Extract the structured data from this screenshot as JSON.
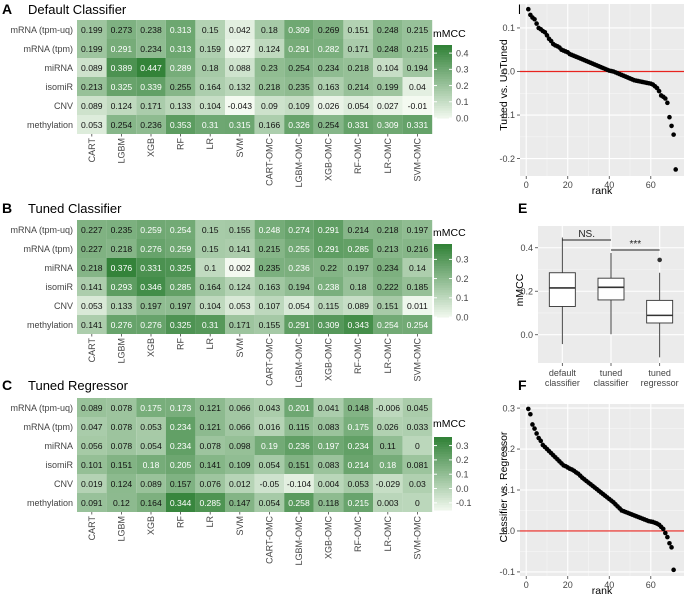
{
  "chart_data": {
    "heatmaps": [
      {
        "id": "A",
        "panel_label": "A",
        "type": "heatmap",
        "title": "Default Classifier",
        "legend_title": "mMCC",
        "legend_ticks": [
          0.4,
          0.3,
          0.2,
          0.1,
          0.0
        ],
        "legend_tick_labels": [
          "0.4",
          "0.3",
          "0.2",
          "0.1",
          "0.0"
        ],
        "scale": [
          0.0,
          0.45
        ],
        "rows": [
          "mRNA (tpm-uq)",
          "mRNA (tpm)",
          "miRNA",
          "isomiR",
          "CNV",
          "methylation"
        ],
        "cols": [
          "CART",
          "LGBM",
          "XGB",
          "RF",
          "LR",
          "SVM",
          "CART-OMC",
          "LGBM-OMC",
          "XGB-OMC",
          "RF-OMC",
          "LR-OMC",
          "SVM-OMC"
        ],
        "labels": [
          [
            "0.199",
            "0.273",
            "0.238",
            "0.313",
            "0.15",
            "0.042",
            "0.18",
            "0.309",
            "0.269",
            "0.151",
            "0.248",
            "0.215"
          ],
          [
            "0.199",
            "0.291",
            "0.234",
            "0.313",
            "0.159",
            "0.027",
            "0.124",
            "0.291",
            "0.282",
            "0.171",
            "0.248",
            "0.215"
          ],
          [
            "0.089",
            "0.389",
            "0.447",
            "0.289",
            "0.18",
            "0.088",
            "0.23",
            "0.254",
            "0.234",
            "0.218",
            "0.104",
            "0.194"
          ],
          [
            "0.213",
            "0.325",
            "0.339",
            "0.255",
            "0.164",
            "0.132",
            "0.218",
            "0.235",
            "0.163",
            "0.214",
            "0.199",
            "0.04"
          ],
          [
            "0.089",
            "0.124",
            "0.171",
            "0.133",
            "0.104",
            "-0.043",
            "0.09",
            "0.109",
            "0.026",
            "0.054",
            "0.027",
            "-0.01"
          ],
          [
            "0.053",
            "0.254",
            "0.236",
            "0.353",
            "0.31",
            "0.315",
            "0.166",
            "0.326",
            "0.254",
            "0.331",
            "0.309",
            "0.331"
          ]
        ]
      },
      {
        "id": "B",
        "panel_label": "B",
        "type": "heatmap",
        "title": "Tuned Classifier",
        "legend_title": "mMCC",
        "legend_ticks": [
          0.3,
          0.2,
          0.1,
          0.0
        ],
        "legend_tick_labels": [
          "0.3",
          "0.2",
          "0.1",
          "0.0"
        ],
        "scale": [
          0.0,
          0.38
        ],
        "rows": [
          "mRNA (tpm-uq)",
          "mRNA (tpm)",
          "miRNA",
          "isomiR",
          "CNV",
          "methylation"
        ],
        "cols": [
          "CART",
          "LGBM",
          "XGB",
          "RF",
          "LR",
          "SVM",
          "CART-OMC",
          "LGBM-OMC",
          "XGB-OMC",
          "RF-OMC",
          "LR-OMC",
          "SVM-OMC"
        ],
        "labels": [
          [
            "0.227",
            "0.235",
            "0.259",
            "0.254",
            "0.15",
            "0.155",
            "0.248",
            "0.274",
            "0.291",
            "0.214",
            "0.218",
            "0.197"
          ],
          [
            "0.227",
            "0.218",
            "0.276",
            "0.259",
            "0.15",
            "0.141",
            "0.215",
            "0.255",
            "0.291",
            "0.285",
            "0.213",
            "0.216"
          ],
          [
            "0.218",
            "0.376",
            "0.331",
            "0.325",
            "0.1",
            "0.002",
            "0.235",
            "0.236",
            "0.22",
            "0.197",
            "0.234",
            "0.14"
          ],
          [
            "0.141",
            "0.293",
            "0.346",
            "0.285",
            "0.164",
            "0.124",
            "0.163",
            "0.194",
            "0.238",
            "0.18",
            "0.222",
            "0.185"
          ],
          [
            "0.053",
            "0.133",
            "0.197",
            "0.197",
            "0.104",
            "0.053",
            "0.107",
            "0.054",
            "0.115",
            "0.089",
            "0.151",
            "0.011"
          ],
          [
            "0.141",
            "0.276",
            "0.276",
            "0.325",
            "0.31",
            "0.171",
            "0.155",
            "0.291",
            "0.309",
            "0.343",
            "0.254",
            "0.254"
          ]
        ]
      },
      {
        "id": "C",
        "panel_label": "C",
        "type": "heatmap",
        "title": "Tuned Regressor",
        "legend_title": "mMCC",
        "legend_ticks": [
          0.3,
          0.2,
          0.1,
          0.0,
          -0.1
        ],
        "legend_tick_labels": [
          "0.3",
          "0.2",
          "0.1",
          "0.0",
          "-0.1"
        ],
        "scale": [
          -0.15,
          0.36
        ],
        "rows": [
          "mRNA (tpm-uq)",
          "mRNA (tpm)",
          "miRNA",
          "isomiR",
          "CNV",
          "methylation"
        ],
        "cols": [
          "CART",
          "LGBM",
          "XGB",
          "RF",
          "LR",
          "SVM",
          "CART-OMC",
          "LGBM-OMC",
          "XGB-OMC",
          "RF-OMC",
          "LR-OMC",
          "SVM-OMC"
        ],
        "labels": [
          [
            "0.089",
            "0.078",
            "0.175",
            "0.173",
            "0.121",
            "0.066",
            "0.043",
            "0.201",
            "0.041",
            "0.148",
            "-0.006",
            "0.045"
          ],
          [
            "0.047",
            "0.078",
            "0.053",
            "0.234",
            "0.121",
            "0.066",
            "0.016",
            "0.115",
            "0.083",
            "0.175",
            "0.026",
            "0.033"
          ],
          [
            "0.056",
            "0.078",
            "0.054",
            "0.234",
            "0.078",
            "0.098",
            "0.19",
            "0.236",
            "0.197",
            "0.234",
            "0.11",
            "0"
          ],
          [
            "0.101",
            "0.151",
            "0.18",
            "0.205",
            "0.141",
            "0.109",
            "0.054",
            "0.151",
            "0.083",
            "0.214",
            "0.18",
            "0.081"
          ],
          [
            "0.019",
            "0.124",
            "0.089",
            "0.157",
            "0.076",
            "0.012",
            "-0.05",
            "-0.104",
            "0.004",
            "0.053",
            "-0.029",
            "0.03"
          ],
          [
            "0.091",
            "0.12",
            "0.164",
            "0.344",
            "0.285",
            "0.147",
            "0.054",
            "0.258",
            "0.118",
            "0.215",
            "0.003",
            "0"
          ]
        ]
      }
    ],
    "rank_plots": [
      {
        "id": "D",
        "panel_label": "D",
        "type": "scatter",
        "ylabel": "Tuned vs. UnTuned",
        "xlabel": "rank",
        "xlim": [
          -3,
          76
        ],
        "ylim": [
          -0.24,
          0.155
        ],
        "xticks": [
          0,
          20,
          40,
          60
        ],
        "yticks": [
          0.1,
          0.0,
          -0.1,
          -0.2
        ],
        "ytick_labels": [
          "0.1",
          "0.0",
          "-0.1",
          "-0.2"
        ],
        "reference_line": 0,
        "y": [
          0.143,
          0.13,
          0.124,
          0.12,
          0.11,
          0.1,
          0.097,
          0.093,
          0.09,
          0.083,
          0.075,
          0.07,
          0.063,
          0.06,
          0.058,
          0.055,
          0.05,
          0.048,
          0.046,
          0.044,
          0.04,
          0.038,
          0.036,
          0.034,
          0.032,
          0.03,
          0.028,
          0.026,
          0.024,
          0.022,
          0.02,
          0.018,
          0.016,
          0.014,
          0.012,
          0.01,
          0.008,
          0.006,
          0.004,
          0.002,
          0.001,
          0.0,
          -0.002,
          -0.004,
          -0.006,
          -0.008,
          -0.01,
          -0.012,
          -0.014,
          -0.016,
          -0.018,
          -0.02,
          -0.021,
          -0.022,
          -0.023,
          -0.024,
          -0.025,
          -0.026,
          -0.027,
          -0.028,
          -0.03,
          -0.034,
          -0.038,
          -0.045,
          -0.055,
          -0.058,
          -0.062,
          -0.072,
          -0.105,
          -0.125,
          -0.145,
          -0.225
        ]
      },
      {
        "id": "F",
        "panel_label": "F",
        "type": "scatter",
        "ylabel": "Classifier vs. Regressor",
        "xlabel": "rank",
        "xlim": [
          -3,
          76
        ],
        "ylim": [
          -0.11,
          0.31
        ],
        "xticks": [
          0,
          20,
          40,
          60
        ],
        "yticks": [
          0.3,
          0.2,
          0.1,
          0.0,
          -0.1
        ],
        "ytick_labels": [
          "0.3",
          "0.2",
          "0.1",
          "0.0",
          "-0.1"
        ],
        "reference_line": 0,
        "y": [
          0.298,
          0.285,
          0.26,
          0.25,
          0.238,
          0.227,
          0.22,
          0.21,
          0.205,
          0.2,
          0.195,
          0.19,
          0.185,
          0.18,
          0.175,
          0.17,
          0.165,
          0.16,
          0.158,
          0.155,
          0.152,
          0.15,
          0.147,
          0.143,
          0.14,
          0.135,
          0.13,
          0.126,
          0.122,
          0.118,
          0.114,
          0.11,
          0.106,
          0.102,
          0.098,
          0.094,
          0.09,
          0.086,
          0.082,
          0.078,
          0.074,
          0.07,
          0.065,
          0.06,
          0.055,
          0.05,
          0.048,
          0.046,
          0.044,
          0.042,
          0.04,
          0.038,
          0.036,
          0.034,
          0.032,
          0.03,
          0.028,
          0.026,
          0.024,
          0.023,
          0.022,
          0.02,
          0.018,
          0.015,
          0.01,
          0.005,
          -0.005,
          -0.015,
          -0.03,
          -0.04,
          -0.095
        ]
      }
    ],
    "boxplot": {
      "id": "E",
      "panel_label": "E",
      "type": "box",
      "ylabel": "mMCC",
      "ylim": [
        -0.13,
        0.5
      ],
      "yticks": [
        0.4,
        0.2,
        0.0
      ],
      "ytick_labels": [
        "0.4",
        "0.2",
        "0.0"
      ],
      "groups": [
        {
          "label_line1": "default",
          "label_line2": "classifier",
          "min": -0.043,
          "q1": 0.13,
          "median": 0.215,
          "q3": 0.285,
          "max": 0.447,
          "outliers": []
        },
        {
          "label_line1": "tuned",
          "label_line2": "classifier",
          "min": 0.002,
          "q1": 0.16,
          "median": 0.218,
          "q3": 0.26,
          "max": 0.376,
          "outliers": []
        },
        {
          "label_line1": "tuned",
          "label_line2": "regressor",
          "min": -0.104,
          "q1": 0.054,
          "median": 0.089,
          "q3": 0.158,
          "max": 0.285,
          "outliers": [
            0.344
          ]
        }
      ],
      "significance": [
        {
          "from": 0,
          "to": 1,
          "label": "NS."
        },
        {
          "from": 1,
          "to": 2,
          "label": "***"
        }
      ]
    }
  }
}
